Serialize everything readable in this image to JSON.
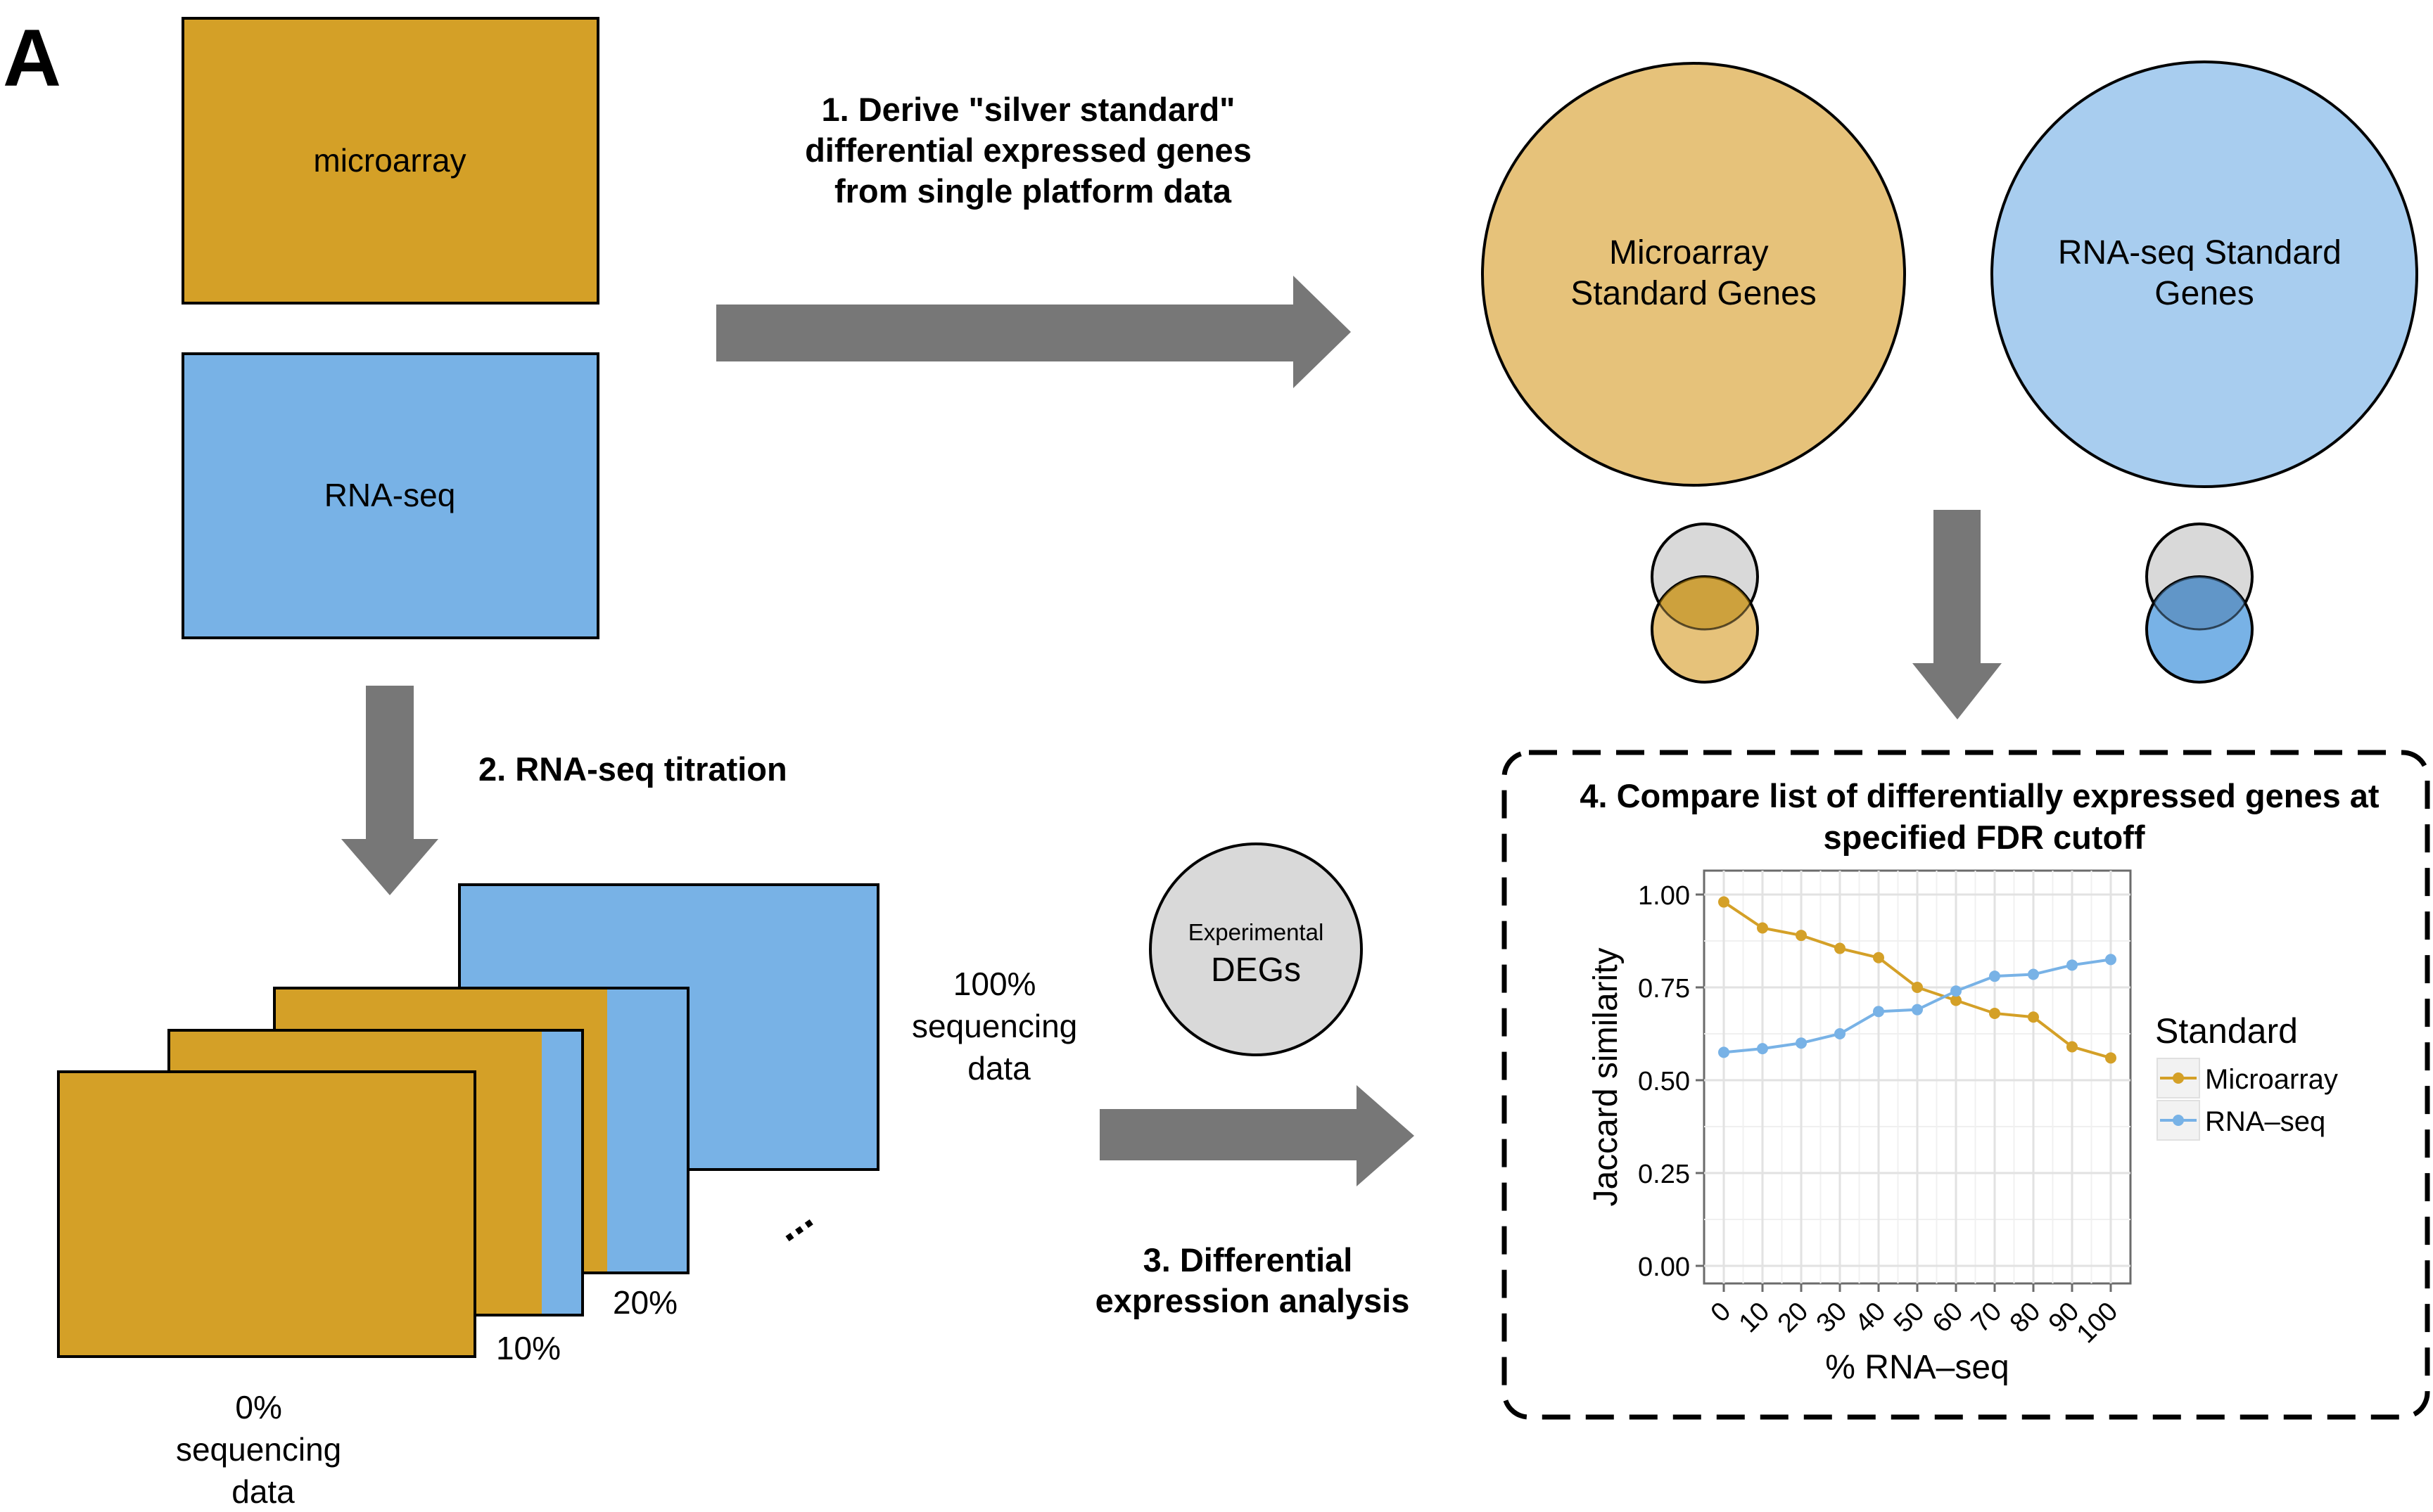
{
  "panel_letter": "A",
  "colors": {
    "gold": "#D4A027",
    "blue": "#78B2E6",
    "gold_light": "#E6C27A",
    "blue_light": "#A8CDEF",
    "gray_circle": "#D9D9D9",
    "arrow_gray": "#777777",
    "microarray_series": "#D4A027",
    "rnaseq_series": "#78B2E6"
  },
  "boxes": {
    "microarray": "microarray",
    "rnaseq": "RNA-seq"
  },
  "steps": {
    "step1": [
      "1. Derive \"silver standard\"",
      "differential expressed genes",
      "from single platform data"
    ],
    "step2": "2. RNA-seq titration",
    "step3": [
      "3. Differential",
      "expression analysis"
    ],
    "step4": [
      "4. Compare list of differentially expressed genes at",
      "specified FDR cutoff"
    ]
  },
  "circles": {
    "microarray_standard": [
      "Microarray",
      "Standard Genes"
    ],
    "rnaseq_standard": [
      "RNA-seq Standard",
      "Genes"
    ],
    "experimental_small": "Experimental",
    "experimental_big": "DEGs"
  },
  "titration": {
    "label_100": [
      "100%",
      "sequencing",
      "data"
    ],
    "label_20": "20%",
    "label_10": "10%",
    "label_0": [
      "0%",
      "sequencing",
      "data"
    ],
    "ellipsis": "..."
  },
  "chart_data": {
    "type": "line",
    "x": [
      0,
      10,
      20,
      30,
      40,
      50,
      60,
      70,
      80,
      90,
      100
    ],
    "categories": [
      "0",
      "10",
      "20",
      "30",
      "40",
      "50",
      "60",
      "70",
      "80",
      "90",
      "100"
    ],
    "series": [
      {
        "name": "Microarray",
        "color": "#D4A027",
        "values": [
          0.98,
          0.91,
          0.89,
          0.855,
          0.83,
          0.75,
          0.715,
          0.68,
          0.67,
          0.59,
          0.56
        ]
      },
      {
        "name": "RNA–seq",
        "color": "#78B2E6",
        "values": [
          0.575,
          0.585,
          0.6,
          0.625,
          0.685,
          0.69,
          0.74,
          0.78,
          0.785,
          0.81,
          0.825
        ]
      }
    ],
    "xlabel": "% RNA–seq",
    "ylabel": "Jaccard similarity",
    "yticks": [
      "0.00",
      "0.25",
      "0.50",
      "0.75",
      "1.00"
    ],
    "ylim": [
      0,
      1.03
    ],
    "legend_title": "Standard",
    "legend_position": "right",
    "grid": true
  }
}
